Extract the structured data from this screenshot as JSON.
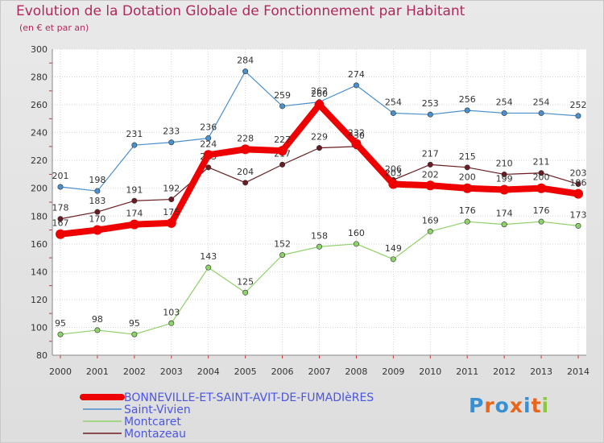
{
  "header": {
    "title": "Evolution de la Dotation Globale de Fonctionnement par Habitant",
    "subtitle": "(en € et par an)"
  },
  "logo": {
    "letters": [
      "P",
      "r",
      "o",
      "x",
      "i",
      "t",
      "i"
    ],
    "colors": [
      "#3a8fd0",
      "#e8661c",
      "#3a8fd0",
      "#e8661c",
      "#3a8fd0",
      "#e8661c",
      "#8bc83a"
    ]
  },
  "chart_data": {
    "type": "line",
    "title": "Evolution de la Dotation Globale de Fonctionnement par Habitant",
    "subtitle": "(en € et par an)",
    "xlabel": "",
    "ylabel": "",
    "x": [
      "2000",
      "2001",
      "2002",
      "2003",
      "2004",
      "2005",
      "2006",
      "2007",
      "2008",
      "2009",
      "2010",
      "2011",
      "2012",
      "2013",
      "2014"
    ],
    "ylim": [
      80,
      300
    ],
    "yticks": [
      80,
      100,
      120,
      140,
      160,
      180,
      200,
      220,
      240,
      260,
      280,
      300
    ],
    "grid": true,
    "legend": "bottom-left",
    "series": [
      {
        "name": "Saint-Vivien",
        "color": "#4b8fcd",
        "values": [
          201,
          198,
          231,
          233,
          236,
          284,
          259,
          262,
          274,
          254,
          253,
          256,
          254,
          254,
          252
        ],
        "labels": [
          "201",
          "198",
          "231",
          "233",
          "236",
          "284",
          "259",
          "262",
          "274",
          "254",
          "253",
          "256",
          "254",
          "254",
          "252"
        ]
      },
      {
        "name": "Montcaret",
        "color": "#8fd16a",
        "values": [
          95,
          98,
          95,
          103,
          143,
          125,
          152,
          158,
          160,
          149,
          169,
          176,
          174,
          176,
          173
        ],
        "labels": [
          "95",
          "98",
          "95",
          "103",
          "143",
          "125",
          "152",
          "158",
          "160",
          "149",
          "169",
          "176",
          "174",
          "176",
          "173"
        ]
      },
      {
        "name": "Montazeau",
        "color": "#6b1c22",
        "values": [
          178,
          183,
          191,
          192,
          215,
          204,
          217,
          229,
          230,
          206,
          217,
          215,
          210,
          211,
          203
        ],
        "labels": [
          "178",
          "183",
          "191",
          "192",
          "215",
          "204",
          "217",
          "229",
          "230",
          "206",
          "217",
          "215",
          "210",
          "211",
          "203"
        ]
      },
      {
        "name": "BONNEVILLE-ET-SAINT-AVIT-DE-FUMADIèRES",
        "color": "#ee0000",
        "values": [
          167,
          170,
          174,
          175,
          224,
          228,
          227,
          260,
          232,
          203,
          202,
          200,
          199,
          200,
          196
        ],
        "labels": [
          "167",
          "170",
          "174",
          "175",
          "224",
          "228",
          "227",
          "260",
          "232",
          "203",
          "202",
          "200",
          "199",
          "200",
          "196"
        ]
      }
    ],
    "legend_entries": [
      {
        "name": "BONNEVILLE-ET-SAINT-AVIT-DE-FUMADIèRES",
        "color": "#ee0000",
        "text_color": "#4b56e3",
        "thick": true
      },
      {
        "name": "Saint-Vivien",
        "color": "#4b8fcd",
        "text_color": "#4b56e3",
        "thick": false
      },
      {
        "name": "Montcaret",
        "color": "#8fd16a",
        "text_color": "#4b56e3",
        "thick": false
      },
      {
        "name": "Montazeau",
        "color": "#6b1c22",
        "text_color": "#4b56e3",
        "thick": false
      }
    ]
  }
}
